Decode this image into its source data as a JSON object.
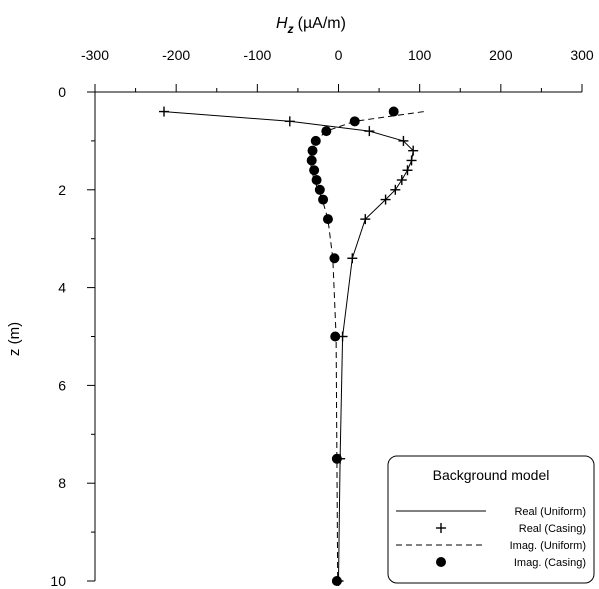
{
  "chart_data": {
    "type": "line",
    "title": "",
    "xlabel": "H",
    "xlabel_sub": "z",
    "xlabel_unit": "(µA/m)",
    "ylabel": "z (m)",
    "xlim": [
      -300,
      300
    ],
    "ylim": [
      10,
      0
    ],
    "x_ticks": [
      -300,
      -200,
      -100,
      0,
      100,
      200,
      300
    ],
    "x_tick_labels": [
      "-300",
      "-200",
      "-100",
      "0",
      "100",
      "200",
      "300"
    ],
    "y_ticks": [
      0,
      2,
      4,
      6,
      8,
      10
    ],
    "y_tick_labels": [
      "0",
      "2",
      "4",
      "6",
      "8",
      "10"
    ],
    "x_axis_position": "top",
    "y_axis_inverted": true,
    "grid": false,
    "legend": {
      "title": "Background model",
      "position": "bottom-right",
      "entries": [
        "Real (Uniform)",
        "Real (Casing)",
        "Imag. (Uniform)",
        "Imag. (Casing)"
      ]
    },
    "series": [
      {
        "name": "Real (Uniform)",
        "style": "solid",
        "marker": "none",
        "color": "#000000",
        "points": [
          [
            -215,
            0.4
          ],
          [
            -60,
            0.6
          ],
          [
            38,
            0.8
          ],
          [
            80,
            1.0
          ],
          [
            92,
            1.2
          ],
          [
            90,
            1.4
          ],
          [
            85,
            1.6
          ],
          [
            78,
            1.8
          ],
          [
            70,
            2.0
          ],
          [
            58,
            2.2
          ],
          [
            33,
            2.6
          ],
          [
            17,
            3.4
          ],
          [
            5,
            5.0
          ],
          [
            2,
            7.5
          ],
          [
            0,
            10.0
          ]
        ]
      },
      {
        "name": "Real (Casing)",
        "style": "none",
        "marker": "plus",
        "color": "#000000",
        "points": [
          [
            -215,
            0.4
          ],
          [
            -60,
            0.6
          ],
          [
            38,
            0.8
          ],
          [
            80,
            1.0
          ],
          [
            92,
            1.2
          ],
          [
            90,
            1.4
          ],
          [
            85,
            1.6
          ],
          [
            78,
            1.8
          ],
          [
            70,
            2.0
          ],
          [
            58,
            2.2
          ],
          [
            33,
            2.6
          ],
          [
            17,
            3.4
          ],
          [
            5,
            5.0
          ],
          [
            2,
            7.5
          ],
          [
            0,
            10.0
          ]
        ]
      },
      {
        "name": "Imag. (Uniform)",
        "style": "dashed",
        "marker": "none",
        "color": "#000000",
        "points": [
          [
            105,
            0.4
          ],
          [
            20,
            0.6
          ],
          [
            -15,
            0.8
          ],
          [
            -28,
            1.0
          ],
          [
            -35,
            1.2
          ],
          [
            -35,
            1.4
          ],
          [
            -33,
            1.6
          ],
          [
            -30,
            1.8
          ],
          [
            -25,
            2.0
          ],
          [
            -20,
            2.2
          ],
          [
            -13,
            2.6
          ],
          [
            -7,
            3.4
          ],
          [
            -3,
            5.0
          ],
          [
            -2,
            7.5
          ],
          [
            -1,
            10.0
          ]
        ]
      },
      {
        "name": "Imag. (Casing)",
        "style": "none",
        "marker": "circle",
        "color": "#000000",
        "points": [
          [
            68,
            0.4
          ],
          [
            20,
            0.6
          ],
          [
            -15,
            0.8
          ],
          [
            -28,
            1.0
          ],
          [
            -32,
            1.2
          ],
          [
            -33,
            1.4
          ],
          [
            -30,
            1.6
          ],
          [
            -27,
            1.8
          ],
          [
            -23,
            2.0
          ],
          [
            -19,
            2.2
          ],
          [
            -13,
            2.6
          ],
          [
            -5,
            3.4
          ],
          [
            -4,
            5.0
          ],
          [
            -2,
            7.5
          ],
          [
            -2,
            10.0
          ]
        ]
      }
    ]
  }
}
